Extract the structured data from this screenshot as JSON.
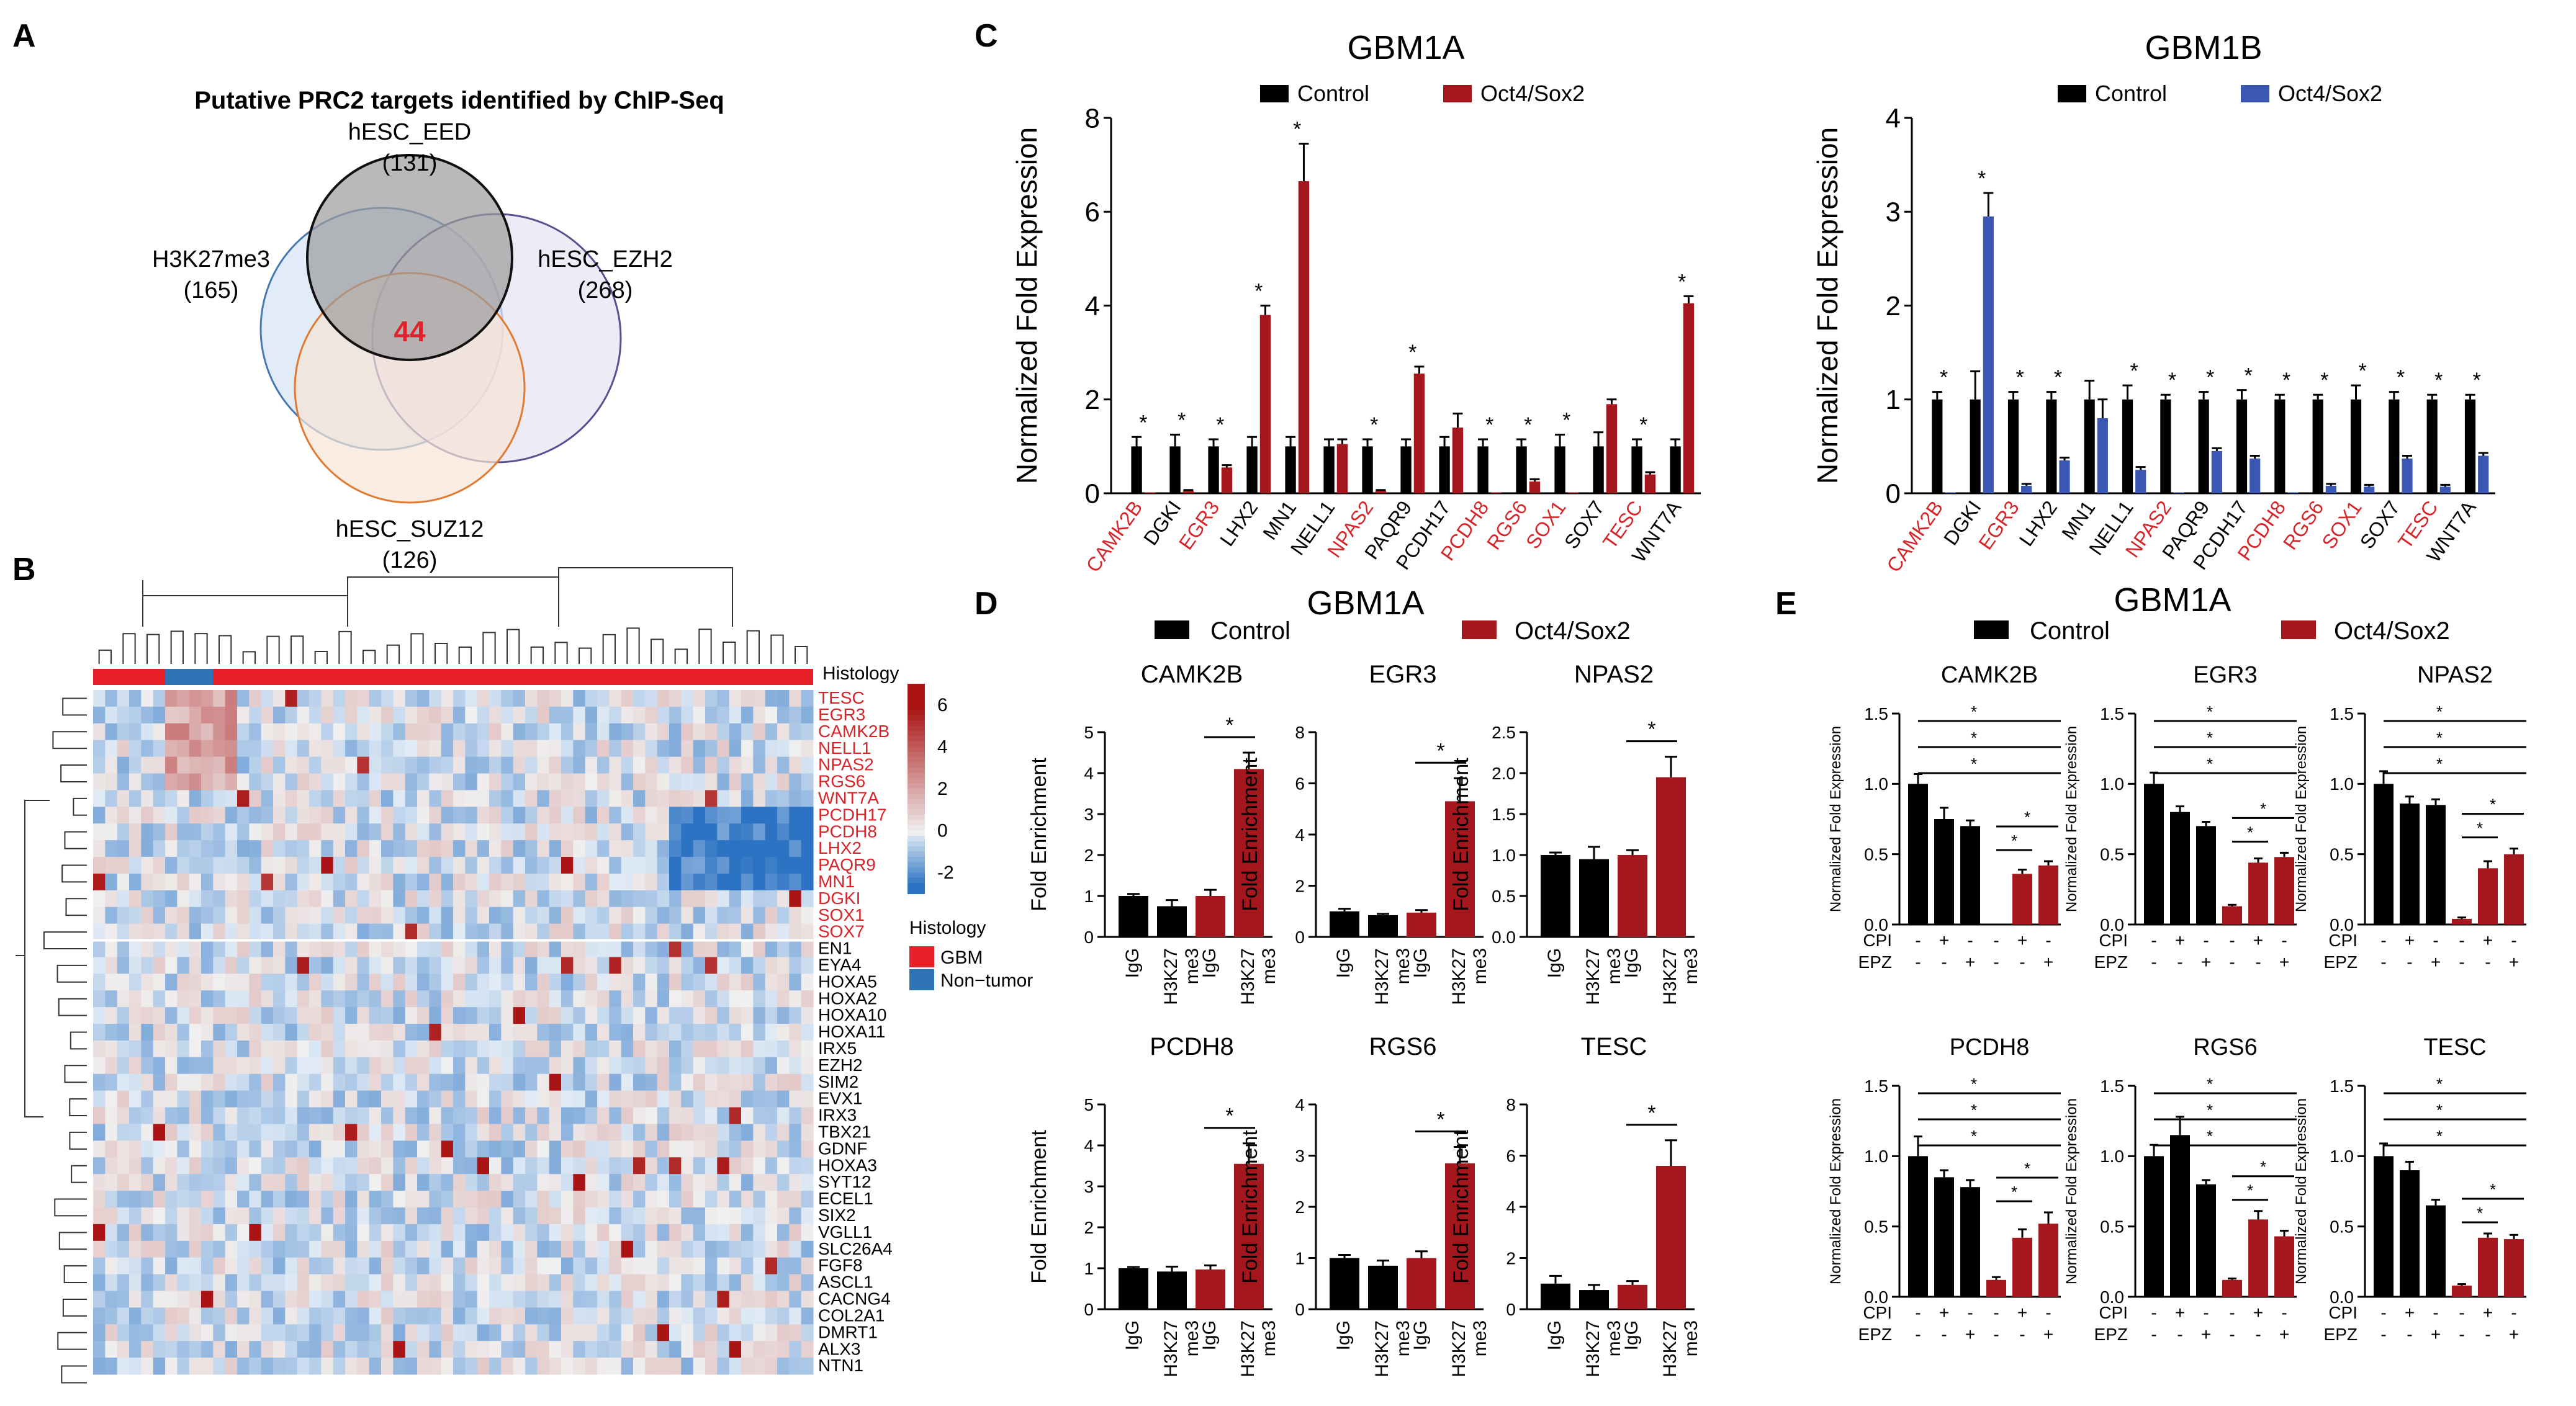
{
  "colors": {
    "control": "#000000",
    "oct4_red": "#a4171c",
    "oct4_blue": "#3b57b4",
    "highlight_red": "#d6262b",
    "histology_gbm": "#e8202a",
    "histology_nontumor": "#2f74b5"
  },
  "panel_labels": [
    "A",
    "B",
    "C",
    "D",
    "E"
  ],
  "legend": {
    "control": "Control",
    "oct4": "Oct4/Sox2"
  },
  "venn": {
    "title": "Putative PRC2 targets identified by ChIP-Seq",
    "sets": [
      {
        "name": "hESC_EED",
        "count": "(131)",
        "color": "#888888"
      },
      {
        "name": "H3K27me3",
        "count": "(165)",
        "color": "#9ec2e6"
      },
      {
        "name": "hESC_EZH2",
        "count": "(268)",
        "color": "#c9c3e3"
      },
      {
        "name": "hESC_SUZ12",
        "count": "(126)",
        "color": "#f2c9a8"
      }
    ],
    "overlap": "44"
  },
  "heatmap": {
    "track_label": "Histology",
    "legend_title": "Histology",
    "legend_items": [
      "GBM",
      "Non−tumor"
    ],
    "scale_ticks": [
      "6",
      "4",
      "2",
      "0",
      "-2"
    ],
    "genes_red": [
      "TESC",
      "EGR3",
      "CAMK2B",
      "NELL1",
      "NPAS2",
      "RGS6",
      "WNT7A",
      "PCDH17",
      "PCDH8",
      "LHX2",
      "PAQR9",
      "MN1",
      "DGKI",
      "SOX1",
      "SOX7"
    ],
    "genes_black": [
      "EN1",
      "EYA4",
      "HOXA5",
      "HOXA2",
      "HOXA10",
      "HOXA11",
      "IRX5",
      "EZH2",
      "SIM2",
      "EVX1",
      "IRX3",
      "TBX21",
      "GDNF",
      "HOXA3",
      "SYT12",
      "ECEL1",
      "SIX2",
      "VGLL1",
      "SLC26A4",
      "FGF8",
      "ASCL1",
      "CACNG4",
      "COL2A1",
      "DMRT1",
      "ALX3",
      "NTN1"
    ]
  },
  "chart_data": [
    {
      "id": "C1",
      "type": "bar",
      "title": "GBM1A",
      "ylabel": "Normalized Fold Expression",
      "ylim": [
        0,
        8
      ],
      "yticks": [
        "0",
        "2",
        "4",
        "6",
        "8"
      ],
      "oct4_color": "#a4171c",
      "categories": [
        "CAMK2B",
        "DGKI",
        "EGR3",
        "LHX2",
        "MN1",
        "NELL1",
        "NPAS2",
        "PAQR9",
        "PCDH17",
        "PCDH8",
        "RGS6",
        "SOX1",
        "SOX7",
        "TESC",
        "WNT7A"
      ],
      "red_labels": [
        "CAMK2B",
        "EGR3",
        "NPAS2",
        "PCDH8",
        "RGS6",
        "SOX1",
        "TESC"
      ],
      "series": [
        {
          "name": "Control",
          "values": [
            1,
            1,
            1,
            1,
            1,
            1,
            1,
            1,
            1,
            1,
            1,
            1,
            1,
            1,
            1
          ],
          "err": [
            0.2,
            0.25,
            0.15,
            0.2,
            0.2,
            0.15,
            0.15,
            0.15,
            0.2,
            0.15,
            0.15,
            0.25,
            0.3,
            0.15,
            0.15
          ]
        },
        {
          "name": "Oct4/Sox2",
          "values": [
            0.02,
            0.05,
            0.55,
            3.8,
            6.65,
            1.05,
            0.05,
            2.55,
            1.4,
            0.02,
            0.25,
            0.02,
            1.9,
            0.4,
            4.05
          ],
          "err": [
            0,
            0.02,
            0.05,
            0.2,
            0.8,
            0.1,
            0.02,
            0.15,
            0.3,
            0,
            0.05,
            0,
            0.1,
            0.05,
            0.15
          ]
        }
      ],
      "stars": [
        1,
        1,
        1,
        1,
        1,
        0,
        1,
        1,
        0,
        1,
        1,
        1,
        0,
        1,
        1
      ]
    },
    {
      "id": "C2",
      "type": "bar",
      "title": "GBM1B",
      "ylabel": "Normalized Fold Expression",
      "ylim": [
        0,
        4
      ],
      "yticks": [
        "0",
        "1",
        "2",
        "3",
        "4"
      ],
      "oct4_color": "#3b57b4",
      "categories": [
        "CAMK2B",
        "DGKI",
        "EGR3",
        "LHX2",
        "MN1",
        "NELL1",
        "NPAS2",
        "PAQR9",
        "PCDH17",
        "PCDH8",
        "RGS6",
        "SOX1",
        "SOX7",
        "TESC",
        "WNT7A"
      ],
      "red_labels": [
        "CAMK2B",
        "EGR3",
        "NPAS2",
        "PCDH8",
        "RGS6",
        "SOX1",
        "TESC"
      ],
      "series": [
        {
          "name": "Control",
          "values": [
            1,
            1,
            1,
            1,
            1,
            1,
            1,
            1,
            1,
            1,
            1,
            1,
            1,
            1,
            1
          ],
          "err": [
            0.08,
            0.3,
            0.08,
            0.08,
            0.2,
            0.15,
            0.05,
            0.08,
            0.1,
            0.05,
            0.05,
            0.15,
            0.08,
            0.05,
            0.05
          ]
        },
        {
          "name": "Oct4/Sox2",
          "values": [
            0.01,
            2.95,
            0.08,
            0.35,
            0.8,
            0.25,
            0.01,
            0.45,
            0.37,
            0.01,
            0.08,
            0.07,
            0.37,
            0.07,
            0.4
          ],
          "err": [
            0,
            0.25,
            0.02,
            0.03,
            0.2,
            0.03,
            0,
            0.03,
            0.03,
            0,
            0.02,
            0.02,
            0.03,
            0.02,
            0.03
          ]
        }
      ],
      "stars": [
        1,
        1,
        1,
        1,
        0,
        1,
        1,
        1,
        1,
        1,
        1,
        1,
        1,
        1,
        1
      ]
    },
    {
      "id": "D1",
      "type": "bar",
      "title": "CAMK2B",
      "ylabel": "Fold Enrichment",
      "ylim": [
        0,
        5
      ],
      "yticks": [
        "0",
        "1",
        "2",
        "3",
        "4",
        "5"
      ],
      "values": [
        1.0,
        0.75,
        1.0,
        4.1
      ],
      "err": [
        0.05,
        0.15,
        0.15,
        0.4
      ]
    },
    {
      "id": "D2",
      "type": "bar",
      "title": "EGR3",
      "ylabel": "Fold Enrichment",
      "ylim": [
        0,
        8
      ],
      "yticks": [
        "0",
        "2",
        "4",
        "6",
        "8"
      ],
      "values": [
        1.0,
        0.85,
        0.95,
        5.3
      ],
      "err": [
        0.1,
        0.05,
        0.1,
        0.9
      ]
    },
    {
      "id": "D3",
      "type": "bar",
      "title": "NPAS2",
      "ylabel": "Fold Enrichment",
      "ylim": [
        0,
        2.5
      ],
      "yticks": [
        "0.0",
        "0.5",
        "1.0",
        "1.5",
        "2.0",
        "2.5"
      ],
      "values": [
        1.0,
        0.95,
        1.0,
        1.95
      ],
      "err": [
        0.03,
        0.15,
        0.06,
        0.25
      ]
    },
    {
      "id": "D4",
      "type": "bar",
      "title": "PCDH8",
      "ylabel": "Fold Enrichment",
      "ylim": [
        0,
        5
      ],
      "yticks": [
        "0",
        "1",
        "2",
        "3",
        "4",
        "5"
      ],
      "values": [
        1.0,
        0.92,
        0.97,
        3.55
      ],
      "err": [
        0.03,
        0.12,
        0.1,
        0.5
      ]
    },
    {
      "id": "D5",
      "type": "bar",
      "title": "RGS6",
      "ylabel": "Fold Enrichment",
      "ylim": [
        0,
        4
      ],
      "yticks": [
        "0",
        "1",
        "2",
        "3",
        "4"
      ],
      "values": [
        1.0,
        0.85,
        1.0,
        2.85
      ],
      "err": [
        0.06,
        0.1,
        0.13,
        0.32
      ]
    },
    {
      "id": "D6",
      "type": "bar",
      "title": "TESC",
      "ylabel": "Fold Enrichment",
      "ylim": [
        0,
        8
      ],
      "yticks": [
        "0",
        "2",
        "4",
        "6",
        "8"
      ],
      "values": [
        1.0,
        0.75,
        0.95,
        5.6
      ],
      "err": [
        0.3,
        0.2,
        0.15,
        1.0
      ]
    },
    {
      "id": "E1",
      "type": "bar",
      "title": "CAMK2B",
      "ylabel": "Normalized Fold Expression",
      "ylim": [
        0,
        1.5
      ],
      "yticks": [
        "0.0",
        "0.5",
        "1.0",
        "1.5"
      ],
      "values": [
        1.0,
        0.75,
        0.7,
        0.0,
        0.36,
        0.42
      ],
      "err": [
        0.07,
        0.08,
        0.04,
        0,
        0.03,
        0.03
      ]
    },
    {
      "id": "E2",
      "type": "bar",
      "title": "EGR3",
      "ylabel": "Normalized Fold Expression",
      "ylim": [
        0,
        1.5
      ],
      "yticks": [
        "0.0",
        "0.5",
        "1.0",
        "1.5"
      ],
      "values": [
        1.0,
        0.8,
        0.7,
        0.13,
        0.44,
        0.48
      ],
      "err": [
        0.08,
        0.04,
        0.03,
        0.01,
        0.03,
        0.03
      ]
    },
    {
      "id": "E3",
      "type": "bar",
      "title": "NPAS2",
      "ylabel": "Normalized Fold Expression",
      "ylim": [
        0,
        1.5
      ],
      "yticks": [
        "0.0",
        "0.5",
        "1.0",
        "1.5"
      ],
      "values": [
        1.0,
        0.86,
        0.85,
        0.04,
        0.4,
        0.5
      ],
      "err": [
        0.09,
        0.05,
        0.04,
        0.01,
        0.05,
        0.04
      ]
    },
    {
      "id": "E4",
      "type": "bar",
      "title": "PCDH8",
      "ylabel": "Normalized Fold Expression",
      "ylim": [
        0,
        1.5
      ],
      "yticks": [
        "0.0",
        "0.5",
        "1.0",
        "1.5"
      ],
      "values": [
        1.0,
        0.85,
        0.78,
        0.12,
        0.42,
        0.52
      ],
      "err": [
        0.14,
        0.05,
        0.05,
        0.02,
        0.06,
        0.08
      ]
    },
    {
      "id": "E5",
      "type": "bar",
      "title": "RGS6",
      "ylabel": "Normalized Fold Expression",
      "ylim": [
        0,
        1.5
      ],
      "yticks": [
        "0.0",
        "0.5",
        "1.0",
        "1.5"
      ],
      "values": [
        1.0,
        1.15,
        0.8,
        0.12,
        0.55,
        0.43
      ],
      "err": [
        0.08,
        0.13,
        0.03,
        0.01,
        0.06,
        0.04
      ]
    },
    {
      "id": "E6",
      "type": "bar",
      "title": "TESC",
      "ylabel": "Normalized Fold Expression",
      "ylim": [
        0,
        1.5
      ],
      "yticks": [
        "0.0",
        "0.5",
        "1.0",
        "1.5"
      ],
      "values": [
        1.0,
        0.9,
        0.65,
        0.08,
        0.42,
        0.41
      ],
      "err": [
        0.09,
        0.06,
        0.04,
        0.01,
        0.03,
        0.03
      ]
    }
  ],
  "panel_d": {
    "title": "GBM1A",
    "xlabels": [
      [
        "IgG"
      ],
      [
        "H3K27",
        "me3"
      ],
      [
        "IgG"
      ],
      [
        "H3K27",
        "me3"
      ]
    ]
  },
  "panel_e": {
    "title": "GBM1A",
    "row_labels": [
      "CPI",
      "EPZ"
    ],
    "cpi": [
      "-",
      "+",
      "-",
      "-",
      "+",
      "-"
    ],
    "epz": [
      "-",
      "-",
      "+",
      "-",
      "-",
      "+"
    ]
  }
}
